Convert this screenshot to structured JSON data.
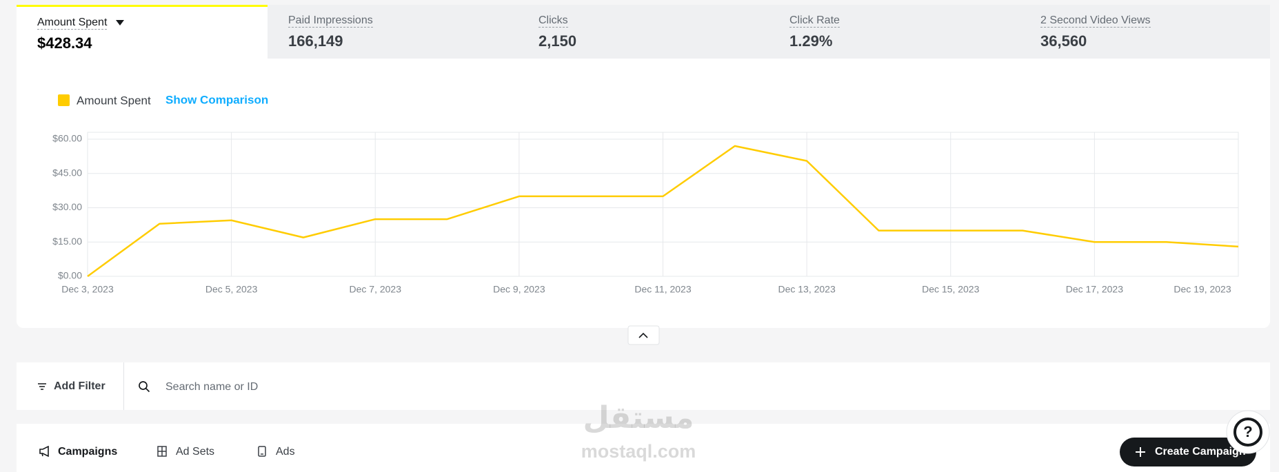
{
  "metrics": [
    {
      "label": "Amount Spent",
      "value": "$428.34"
    },
    {
      "label": "Paid Impressions",
      "value": "166,149"
    },
    {
      "label": "Clicks",
      "value": "2,150"
    },
    {
      "label": "Click Rate",
      "value": "1.29%"
    },
    {
      "label": "2 Second Video Views",
      "value": "36,560"
    }
  ],
  "chart_data": {
    "type": "line",
    "categories": [
      "Dec 3, 2023",
      null,
      "Dec 5, 2023",
      null,
      "Dec 7, 2023",
      null,
      "Dec 9, 2023",
      null,
      "Dec 11, 2023",
      null,
      "Dec 13, 2023",
      null,
      "Dec 15, 2023",
      null,
      "Dec 17, 2023",
      null,
      "Dec 19, 2023"
    ],
    "series": [
      {
        "name": "Amount Spent",
        "color": "#ffcc00",
        "values": [
          0,
          23,
          24.5,
          17,
          25,
          25,
          35,
          35,
          35,
          57,
          50.5,
          20,
          20,
          20,
          15,
          15,
          13
        ]
      }
    ],
    "ylim": [
      0,
      63
    ],
    "yticks": [
      {
        "value": 0,
        "label": "$0.00"
      },
      {
        "value": 15,
        "label": "$15.00"
      },
      {
        "value": 30,
        "label": "$30.00"
      },
      {
        "value": 45,
        "label": "$45.00"
      },
      {
        "value": 60,
        "label": "$60.00"
      }
    ],
    "grid": true
  },
  "comparison_link": "Show Comparison",
  "filter": {
    "button": "Add Filter",
    "search_placeholder": "Search name or ID"
  },
  "tabs": [
    "Campaigns",
    "Ad Sets",
    "Ads"
  ],
  "create_button": "Create Campaign",
  "watermark": {
    "arabic": "مستقل",
    "latin": "mostaql.com"
  }
}
